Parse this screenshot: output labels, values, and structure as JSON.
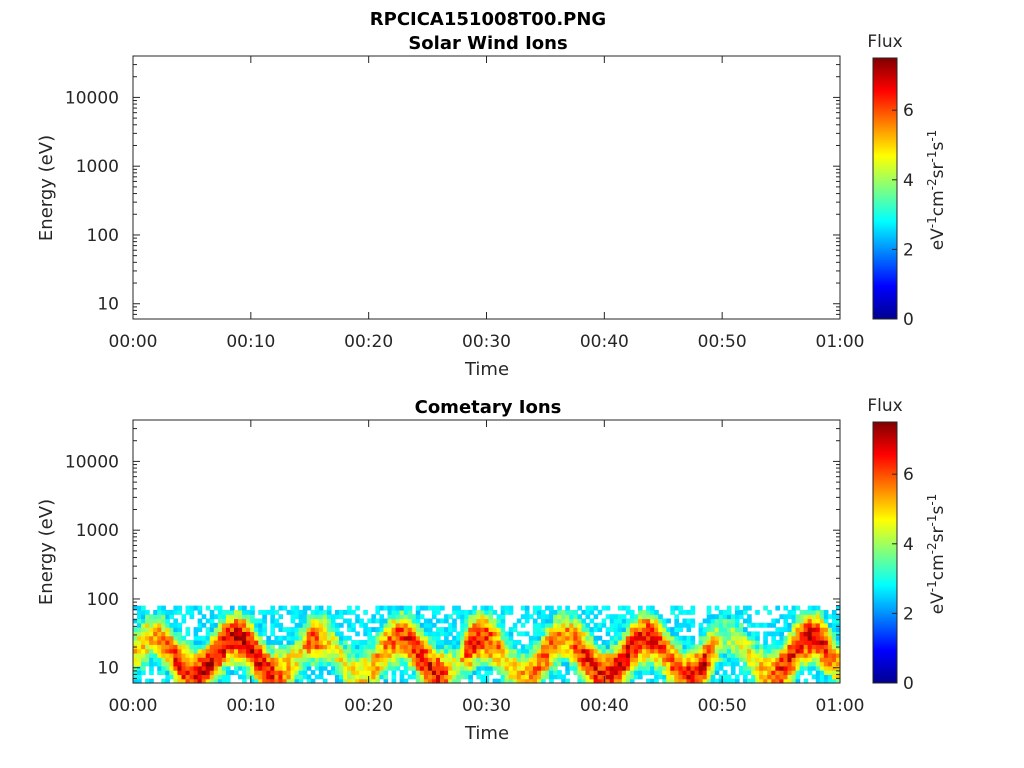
{
  "figure": {
    "filename": "RPCICA151008T00.PNG"
  },
  "chart_data": [
    {
      "type": "heatmap",
      "title": "Solar Wind Ions",
      "xlabel": "Time",
      "ylabel": "Energy (eV)",
      "x_ticks": [
        "00:00",
        "00:10",
        "00:20",
        "00:30",
        "00:40",
        "00:50",
        "01:00"
      ],
      "xlim_minutes": [
        0,
        60
      ],
      "y_scale": "log",
      "y_ticks": [
        "10",
        "100",
        "1000",
        "10000"
      ],
      "ylim": [
        6,
        40000
      ],
      "colorbar": {
        "label": "Flux",
        "units": "eV⁻¹cm⁻²sr⁻¹s⁻¹",
        "ticks": [
          "0",
          "2",
          "4",
          "6"
        ],
        "range": [
          0,
          7.5
        ],
        "colormap": "jet"
      },
      "data": []
    },
    {
      "type": "heatmap",
      "title": "Cometary Ions",
      "xlabel": "Time",
      "ylabel": "Energy (eV)",
      "x_ticks": [
        "00:00",
        "00:10",
        "00:20",
        "00:30",
        "00:40",
        "00:50",
        "01:00"
      ],
      "xlim_minutes": [
        0,
        60
      ],
      "y_scale": "log",
      "y_ticks": [
        "10",
        "100",
        "1000",
        "10000"
      ],
      "ylim": [
        6,
        40000
      ],
      "colorbar": {
        "label": "Flux",
        "units": "eV⁻¹cm⁻²sr⁻¹s⁻¹",
        "ticks": [
          "0",
          "2",
          "4",
          "6"
        ],
        "range": [
          0,
          7.5
        ],
        "colormap": "jet"
      },
      "energy_range_with_signal_eV": [
        6,
        80
      ],
      "peak_intensity_by_time": [
        {
          "t": 0,
          "v": 5.0
        },
        {
          "t": 2,
          "v": 5.2
        },
        {
          "t": 4,
          "v": 6.5
        },
        {
          "t": 6,
          "v": 6.8
        },
        {
          "t": 8,
          "v": 6.7
        },
        {
          "t": 10,
          "v": 6.9
        },
        {
          "t": 12,
          "v": 6.3
        },
        {
          "t": 14,
          "v": 4.6
        },
        {
          "t": 15.5,
          "v": 6.2
        },
        {
          "t": 17,
          "v": 4.5
        },
        {
          "t": 19,
          "v": 4.8
        },
        {
          "t": 21,
          "v": 5.5
        },
        {
          "t": 22.5,
          "v": 6.2
        },
        {
          "t": 24,
          "v": 6.5
        },
        {
          "t": 26,
          "v": 6.8
        },
        {
          "t": 27.5,
          "v": 4.0
        },
        {
          "t": 28.5,
          "v": 6.6
        },
        {
          "t": 30,
          "v": 6.3
        },
        {
          "t": 32,
          "v": 4.9
        },
        {
          "t": 33.5,
          "v": 5.3
        },
        {
          "t": 35,
          "v": 6.0
        },
        {
          "t": 37,
          "v": 5.6
        },
        {
          "t": 38.5,
          "v": 6.6
        },
        {
          "t": 40,
          "v": 6.4
        },
        {
          "t": 41,
          "v": 6.9
        },
        {
          "t": 42.5,
          "v": 6.8
        },
        {
          "t": 44,
          "v": 6.5
        },
        {
          "t": 45.5,
          "v": 5.8
        },
        {
          "t": 47,
          "v": 6.4
        },
        {
          "t": 48.5,
          "v": 6.8
        },
        {
          "t": 50,
          "v": 4.0
        },
        {
          "t": 52,
          "v": 4.4
        },
        {
          "t": 53.5,
          "v": 5.2
        },
        {
          "t": 55,
          "v": 6.4
        },
        {
          "t": 57,
          "v": 6.7
        },
        {
          "t": 58.5,
          "v": 6.8
        },
        {
          "t": 60,
          "v": 5.0
        }
      ]
    }
  ]
}
